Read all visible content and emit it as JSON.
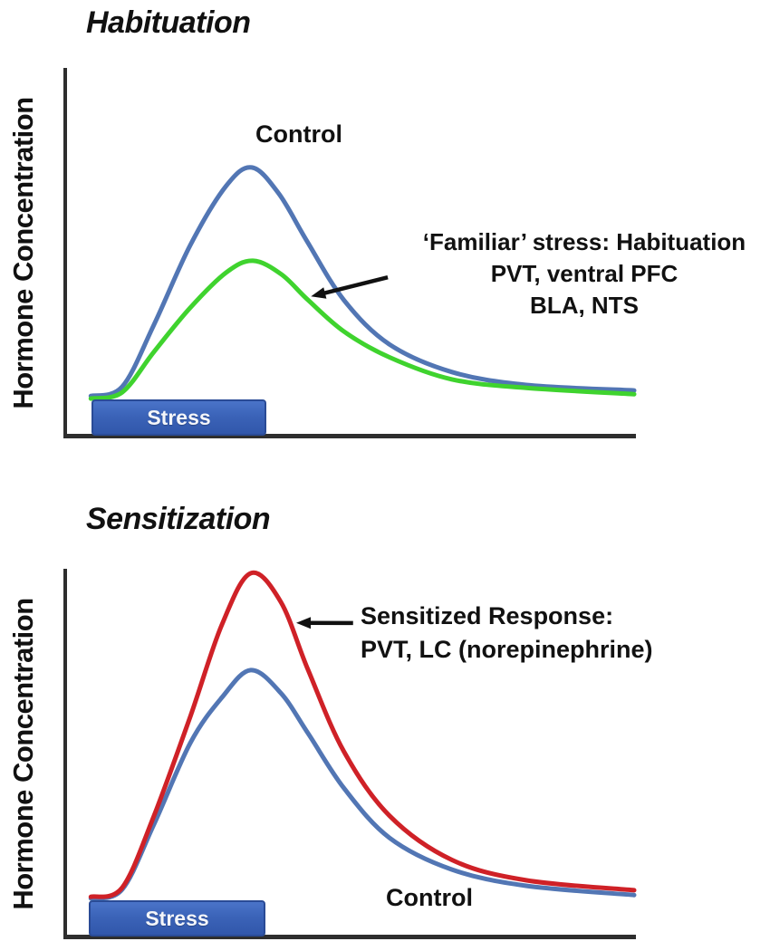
{
  "figure": {
    "background": "#ffffff",
    "axis_color": "#2e2e2e",
    "text_color": "#111111"
  },
  "chart_data": [
    {
      "type": "line",
      "title": "Habituation",
      "ylabel": "Hormone Concentration",
      "xlabel": "",
      "axis_ticks": "none (conceptual diagram, arbitrary units; x = time, y = hormone level)",
      "x_range_pct": [
        0,
        100
      ],
      "y_range_pct": [
        0,
        100
      ],
      "grid": false,
      "series": [
        {
          "name": "Control",
          "color": "#5276b4",
          "stroke_width": 5,
          "points_pct": [
            [
              4.5,
              11
            ],
            [
              10,
              13.5
            ],
            [
              15.5,
              30
            ],
            [
              22,
              52
            ],
            [
              28.3,
              68
            ],
            [
              32.8,
              73
            ],
            [
              37.5,
              66
            ],
            [
              42.5,
              53
            ],
            [
              49,
              37
            ],
            [
              57,
              25
            ],
            [
              68,
              17.5
            ],
            [
              81,
              14
            ],
            [
              100,
              12.5
            ]
          ]
        },
        {
          "name": "Familiar stress (habituated response)",
          "color": "#3fd32e",
          "stroke_width": 5,
          "points_pct": [
            [
              4.5,
              10.3
            ],
            [
              10,
              12
            ],
            [
              15.6,
              23
            ],
            [
              22,
              35
            ],
            [
              28.3,
              44.5
            ],
            [
              33,
              47.7
            ],
            [
              38,
              44
            ],
            [
              42.7,
              37
            ],
            [
              49,
              28.5
            ],
            [
              57,
              21.5
            ],
            [
              68,
              15.5
            ],
            [
              81,
              13.2
            ],
            [
              100,
              11.5
            ]
          ]
        }
      ],
      "curve_label": "Control",
      "annotation": {
        "lines": [
          "‘Familiar’ stress: Habituation",
          "PVT, ventral PFC",
          "BLA, NTS"
        ]
      },
      "arrow": {
        "color": "#111111",
        "from_pct": [
          56.7,
          43.2
        ],
        "to_pct": [
          43.2,
          38.0
        ]
      },
      "stress_bar": {
        "label": "Stress",
        "x_start_pct": 4.9,
        "x_end_pct": 35.5
      }
    },
    {
      "type": "line",
      "title": "Sensitization",
      "ylabel": "Hormone Concentration",
      "xlabel": "",
      "axis_ticks": "none (conceptual diagram, arbitrary units; x = time, y = hormone level)",
      "x_range_pct": [
        0,
        100
      ],
      "y_range_pct": [
        0,
        100
      ],
      "grid": false,
      "series": [
        {
          "name": "Control",
          "color": "#5276b4",
          "stroke_width": 5,
          "points_pct": [
            [
              4.5,
              10.6
            ],
            [
              10,
              13
            ],
            [
              15.6,
              30.7
            ],
            [
              22,
              52.8
            ],
            [
              27.5,
              65
            ],
            [
              32.6,
              72.5
            ],
            [
              37.9,
              66.3
            ],
            [
              42.7,
              55.3
            ],
            [
              49,
              40.5
            ],
            [
              57,
              27
            ],
            [
              68,
              18.4
            ],
            [
              81,
              14
            ],
            [
              100,
              11.5
            ]
          ]
        },
        {
          "name": "Sensitized Response",
          "color": "#cf2127",
          "stroke_width": 5,
          "points_pct": [
            [
              4.5,
              11
            ],
            [
              10,
              13.5
            ],
            [
              15.6,
              33
            ],
            [
              22,
              60
            ],
            [
              27.5,
              84.7
            ],
            [
              32.6,
              98.8
            ],
            [
              37.9,
              91
            ],
            [
              42.7,
              72.5
            ],
            [
              49,
              50.4
            ],
            [
              57,
              33
            ],
            [
              68,
              21
            ],
            [
              81,
              15.5
            ],
            [
              100,
              12.8
            ]
          ]
        }
      ],
      "curve_label": "Control",
      "annotation": {
        "lines": [
          "Sensitized Response:",
          "PVT, LC (norepinephrine)"
        ]
      },
      "arrow": {
        "color": "#111111",
        "from_pct": [
          50.6,
          85.3
        ],
        "to_pct": [
          40.6,
          85.3
        ]
      },
      "stress_bar": {
        "label": "Stress",
        "x_start_pct": 4.5,
        "x_end_pct": 35.5
      }
    }
  ]
}
